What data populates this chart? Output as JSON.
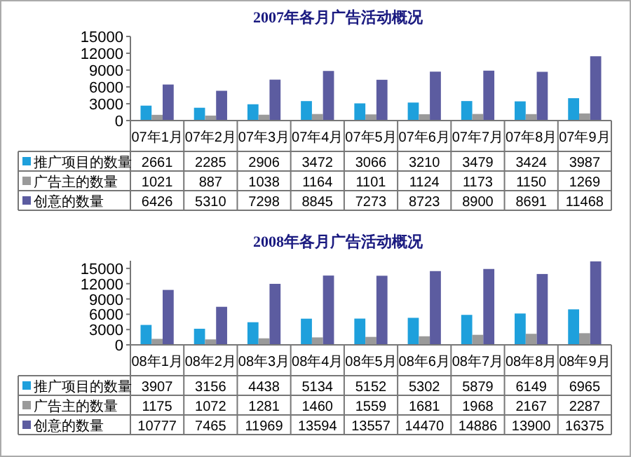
{
  "chart_data": [
    {
      "type": "bar",
      "title": "2007年各月广告活动概况",
      "categories": [
        "07年1月",
        "07年2月",
        "07年3月",
        "07年4月",
        "07年5月",
        "07年6月",
        "07年7月",
        "07年8月",
        "07年9月"
      ],
      "series": [
        {
          "name": "推广项目的数量",
          "color": "#1ea0dc",
          "values": [
            2661,
            2285,
            2906,
            3472,
            3066,
            3210,
            3479,
            3424,
            3987
          ]
        },
        {
          "name": "广告主的数量",
          "color": "#9a9a9a",
          "values": [
            1021,
            887,
            1038,
            1164,
            1101,
            1124,
            1173,
            1150,
            1269
          ]
        },
        {
          "name": "创意的数量",
          "color": "#5c5ca0",
          "values": [
            6426,
            5310,
            7298,
            8845,
            7273,
            8723,
            8900,
            8691,
            11468
          ]
        }
      ],
      "ylim": [
        0,
        15000
      ],
      "yticks": [
        0,
        3000,
        6000,
        9000,
        12000,
        15000
      ],
      "data_labels": true,
      "legend": "bottom left",
      "grid": false
    },
    {
      "type": "bar",
      "title": "2008年各月广告活动概况",
      "categories": [
        "08年1月",
        "08年2月",
        "08年3月",
        "08年4月",
        "08年5月",
        "08年6月",
        "08年7月",
        "08年8月",
        "08年9月"
      ],
      "series": [
        {
          "name": "推广项目的数量",
          "color": "#1ea0dc",
          "values": [
            3907,
            3156,
            4438,
            5134,
            5152,
            5302,
            5879,
            6149,
            6965
          ]
        },
        {
          "name": "广告主的数量",
          "color": "#9a9a9a",
          "values": [
            1175,
            1072,
            1281,
            1460,
            1559,
            1681,
            1968,
            2167,
            2287
          ]
        },
        {
          "name": "创意的数量",
          "color": "#5c5ca0",
          "values": [
            10777,
            7465,
            11969,
            13594,
            13557,
            14470,
            14886,
            13900,
            16375
          ]
        }
      ],
      "ylim": [
        0,
        16500
      ],
      "yticks": [
        0,
        3000,
        6000,
        9000,
        12000,
        15000
      ],
      "data_labels": true,
      "legend": "bottom left",
      "grid": false
    }
  ]
}
